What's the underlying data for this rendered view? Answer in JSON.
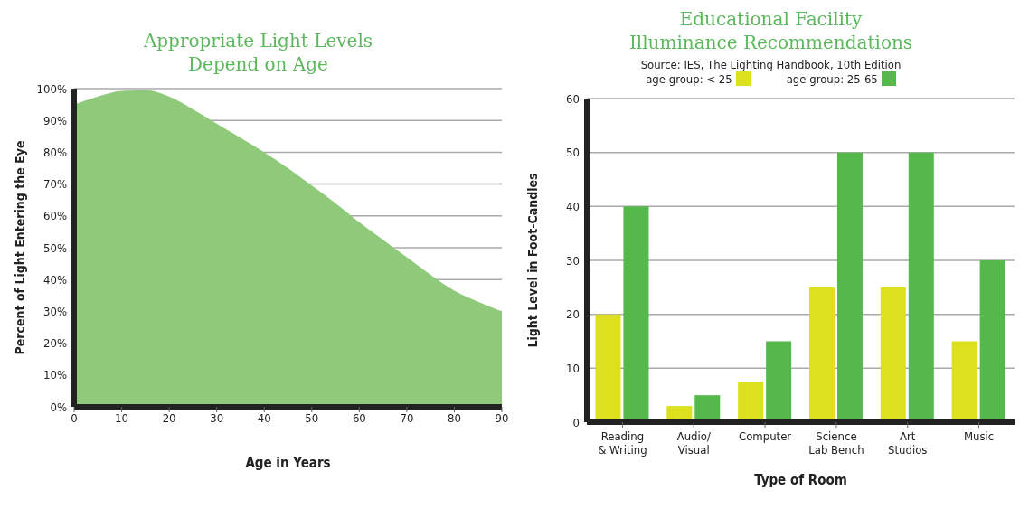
{
  "chart_data": [
    {
      "type": "area",
      "title": "Appropriate Light Levels\nDepend on Age",
      "xlabel": "Age in Years",
      "ylabel": "Percent of Light Entering the Eye",
      "x": [
        0,
        5,
        10,
        15,
        20,
        25,
        30,
        35,
        40,
        45,
        50,
        55,
        60,
        65,
        70,
        75,
        80,
        85,
        90
      ],
      "series": [
        {
          "color": "#8fc97a",
          "values": [
            95,
            97.5,
            99.3,
            99.5,
            97.5,
            93.5,
            89,
            84.5,
            80,
            75,
            69.5,
            64,
            58,
            52.5,
            47,
            41.5,
            36.5,
            33,
            30
          ]
        }
      ],
      "xlim": [
        0,
        90
      ],
      "xticks": [
        0,
        10,
        20,
        30,
        40,
        50,
        60,
        70,
        80,
        90
      ],
      "ylim": [
        0,
        100
      ],
      "yticks": [
        {
          "value": 0,
          "label": "0%"
        },
        {
          "value": 10,
          "label": "10%"
        },
        {
          "value": 20,
          "label": "20%"
        },
        {
          "value": 30,
          "label": "30%"
        },
        {
          "value": 40,
          "label": "40%"
        },
        {
          "value": 50,
          "label": "50%"
        },
        {
          "value": 60,
          "label": "60%"
        },
        {
          "value": 70,
          "label": "70%"
        },
        {
          "value": 80,
          "label": "80%"
        },
        {
          "value": 90,
          "label": "90%"
        },
        {
          "value": 100,
          "label": "100%"
        }
      ],
      "grid": "y",
      "legend": false
    },
    {
      "type": "bar",
      "title": "Educational Facility\nIlluminance Recommendations",
      "subtitle": "Source: IES, The Lighting Handbook, 10th Edition",
      "xlabel": "Type of Room",
      "ylabel": "Light Level in Foot-Candles",
      "categories": [
        "Reading\n& Writing",
        "Audio/\nVisual",
        "Computer",
        "Science\nLab Bench",
        "Art\nStudios",
        "Music"
      ],
      "series": [
        {
          "name": "age group: < 25",
          "color": "#dde01e",
          "values": [
            20,
            3,
            7.5,
            25,
            25,
            15
          ]
        },
        {
          "name": "age group: 25-65",
          "color": "#55b84a",
          "values": [
            40,
            5,
            15,
            50,
            50,
            30
          ]
        }
      ],
      "ylim": [
        0,
        60
      ],
      "yticks": [
        0,
        10,
        20,
        30,
        40,
        50,
        60
      ],
      "grid": "y",
      "legend": "top"
    }
  ]
}
